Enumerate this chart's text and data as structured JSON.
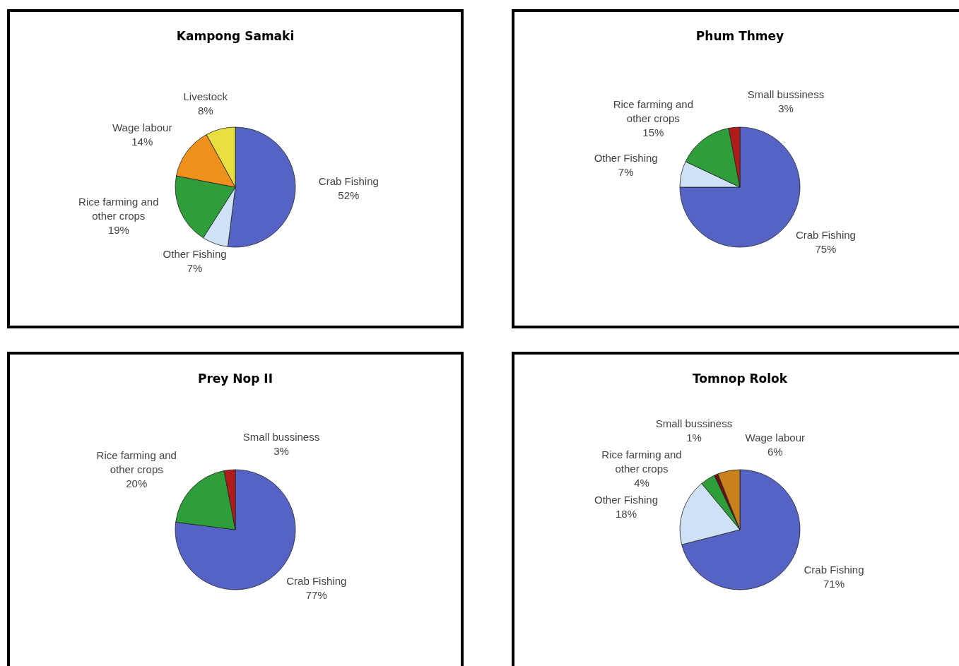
{
  "chart_data": [
    {
      "type": "pie",
      "title": "Kampong Samaki",
      "categories": [
        "Crab Fishing",
        "Other Fishing",
        "Rice farming and other crops",
        "Wage labour",
        "Livestock"
      ],
      "values": [
        52,
        7,
        19,
        14,
        8
      ],
      "value_labels": [
        "52%",
        "7%",
        "19%",
        "14%",
        "8%"
      ],
      "colors": [
        "#5563c4",
        "#cfe2f5",
        "#2e9e3a",
        "#f0901c",
        "#e8e040"
      ],
      "legend": false
    },
    {
      "type": "pie",
      "title": "Phum Thmey",
      "categories": [
        "Crab Fishing",
        "Other Fishing",
        "Rice farming and other crops",
        "Small bussiness"
      ],
      "values": [
        75,
        7,
        15,
        3
      ],
      "value_labels": [
        "75%",
        "7%",
        "15%",
        "3%"
      ],
      "colors": [
        "#5563c4",
        "#cfe2f5",
        "#2e9e3a",
        "#b01c1c"
      ],
      "legend": false
    },
    {
      "type": "pie",
      "title": "Prey Nop II",
      "categories": [
        "Crab Fishing",
        "Rice farming and other crops",
        "Small bussiness"
      ],
      "values": [
        77,
        20,
        3
      ],
      "value_labels": [
        "77%",
        "20%",
        "3%"
      ],
      "colors": [
        "#5563c4",
        "#2e9e3a",
        "#b01c1c"
      ],
      "legend": false
    },
    {
      "type": "pie",
      "title": "Tomnop Rolok",
      "categories": [
        "Crab Fishing",
        "Other Fishing",
        "Rice farming and other crops",
        "Small bussiness",
        "Wage labour"
      ],
      "values": [
        71,
        18,
        4,
        1,
        6
      ],
      "value_labels": [
        "71%",
        "18%",
        "4%",
        "1%",
        "6%"
      ],
      "colors": [
        "#5563c4",
        "#cfe2f5",
        "#2e9e3a",
        "#6a1010",
        "#c8801c"
      ],
      "legend": false
    }
  ]
}
